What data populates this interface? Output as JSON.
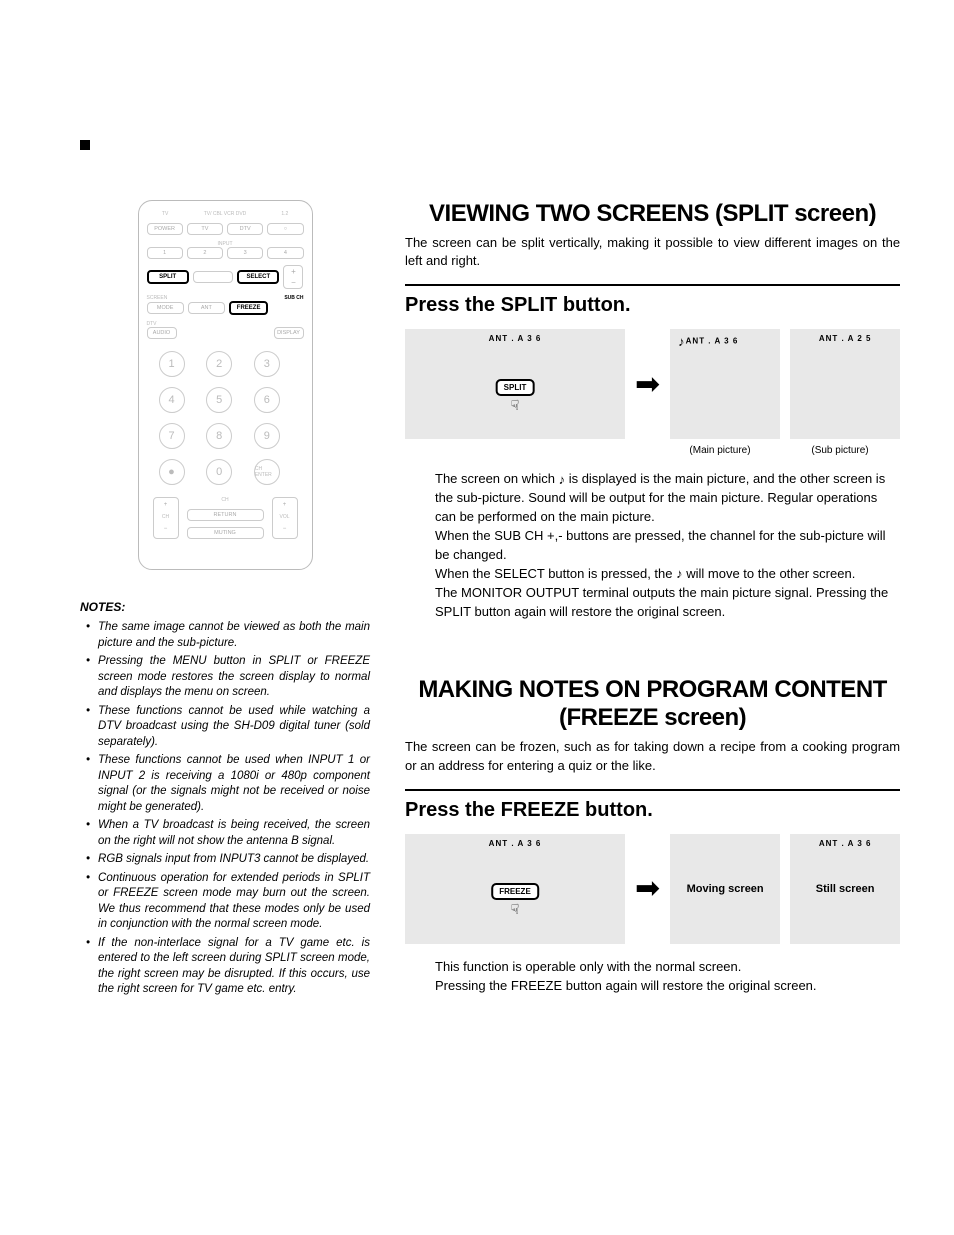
{
  "remote": {
    "top_labels": [
      "TV",
      "TV/ CBL VCR DVD",
      "DTV /SAT",
      "1.2"
    ],
    "row2": [
      "POWER",
      "TV",
      "DTV",
      "○"
    ],
    "input_label": "INPUT",
    "row3": [
      "1",
      "2",
      "3",
      "4"
    ],
    "row4": {
      "split": "SPLIT",
      "mid": "",
      "select": "SELECT",
      "subch": "SUB CH",
      "plus": "+",
      "minus": "−"
    },
    "screen_label": "SCREEN",
    "row5": [
      "MODE",
      "ANT",
      "FREEZE"
    ],
    "dtv_label": "DTV",
    "audio": "AUDIO",
    "display": "DISPLAY",
    "numpad": [
      "1",
      "2",
      "3",
      "4",
      "5",
      "6",
      "7",
      "8",
      "9",
      "●",
      "0",
      "CH ENTER"
    ],
    "ch_label": "CH",
    "return": "RETURN",
    "muting": "MUTING",
    "ch": "CH",
    "vol": "VOL"
  },
  "notes": {
    "header": "NOTES:",
    "items": [
      "The same image cannot be viewed as both the main picture and the sub-picture.",
      "Pressing the MENU button in SPLIT or FREEZE screen mode restores the screen display to normal and displays the menu on screen.",
      "These functions cannot be used while watching a DTV broadcast using the SH-D09 digital tuner (sold separately).",
      "These functions cannot be used when INPUT 1 or INPUT 2 is receiving a 1080i or 480p component signal (or the signals might not be received or noise might be generated).",
      "When a TV broadcast is being received, the screen on the right will not show the antenna B signal.",
      "RGB signals input from INPUT3 cannot be displayed.",
      "Continuous operation for extended periods in SPLIT or FREEZE screen mode may burn out the screen. We thus recommend that these modes only be used in conjunction with the normal screen mode.",
      "If the non-interlace signal for a TV game etc. is entered to the left screen during SPLIT screen mode, the right screen may be disrupted. If this occurs, use the right screen for TV game etc. entry."
    ]
  },
  "split": {
    "title": "VIEWING TWO SCREENS (SPLIT screen)",
    "lead": "The screen can be split vertically, making it possible to view different images on the left and right.",
    "subhead": "Press the SPLIT button.",
    "ant_a_36": "ANT . A  3 6",
    "ant_a_25": "ANT . A  2 5",
    "btn": "SPLIT",
    "main_label": "(Main picture)",
    "sub_label": "(Sub picture)",
    "body1a": "The screen on which ",
    "body1b": " is displayed is the main picture, and the other screen is the sub-picture. Sound will be output for the main picture. Regular operations can be performed on the main picture.",
    "body2": "When the SUB CH +,- buttons are pressed, the channel for the sub-picture will be changed.",
    "body3a": "When the SELECT button is pressed, the ",
    "body3b": " will move to the other screen.",
    "body4": "The MONITOR OUTPUT terminal outputs the main picture signal. Pressing the SPLIT button again will restore the original screen."
  },
  "freeze": {
    "title": "MAKING NOTES ON PROGRAM CONTENT (FREEZE screen)",
    "lead": "The screen can be frozen, such as for taking down a recipe from a cooking program or an address for entering a quiz or the like.",
    "subhead": "Press the FREEZE button.",
    "ant_a_36": "ANT . A  3 6",
    "btn": "FREEZE",
    "moving": "Moving screen",
    "still": "Still screen",
    "body1": "This function is operable only with the normal screen.",
    "body2": "Pressing the FREEZE button again will restore the original screen."
  },
  "icons": {
    "note": "♪",
    "hand": "☟",
    "arrow": "➡"
  },
  "colors": {
    "screen_bg": "#e8e8e8",
    "text": "#000000",
    "faded": "#bbbbbb"
  }
}
